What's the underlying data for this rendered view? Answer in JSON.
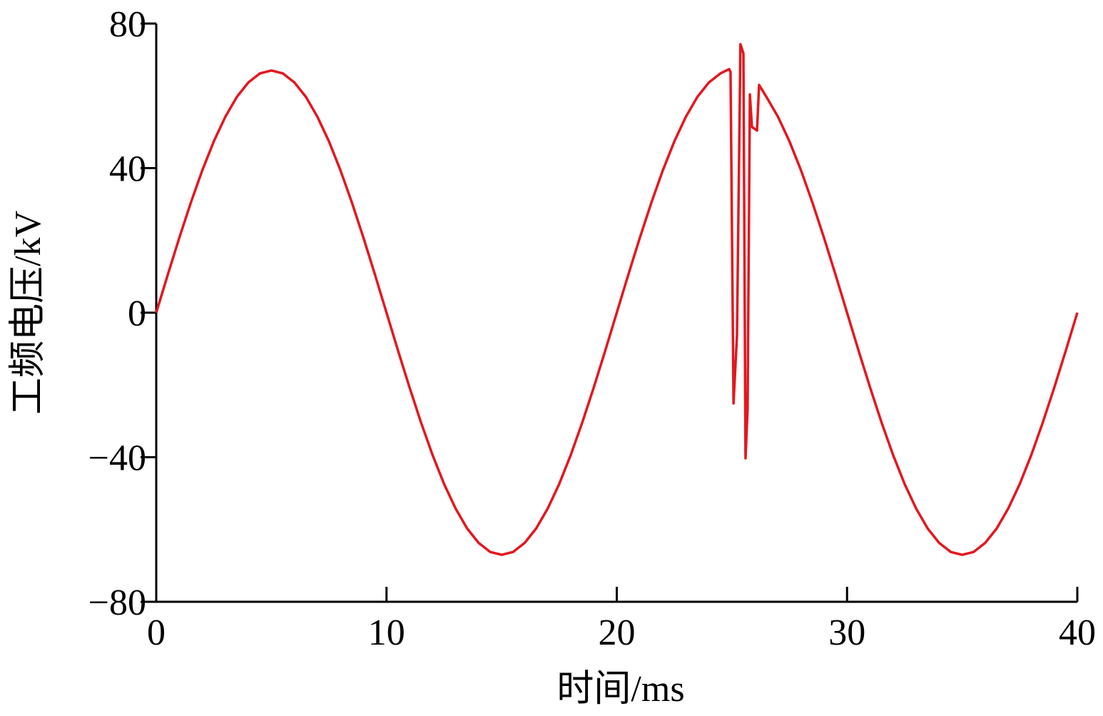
{
  "chart_data": {
    "type": "line",
    "xlabel": "时间/ms",
    "ylabel": "工频电压/kV",
    "color": "#e3171e",
    "x": [
      0,
      0.5,
      1,
      1.5,
      2,
      2.5,
      3,
      3.5,
      4,
      4.5,
      5,
      5.5,
      6,
      6.5,
      7,
      7.5,
      8,
      8.5,
      9,
      9.5,
      10,
      10.5,
      11,
      11.5,
      12,
      12.5,
      13,
      13.5,
      14,
      14.5,
      15,
      15.5,
      16,
      16.5,
      17,
      17.5,
      18,
      18.5,
      19,
      19.5,
      20,
      20.5,
      21,
      21.5,
      22,
      22.5,
      23,
      23.5,
      24,
      24.5,
      24.88,
      24.94,
      25.07,
      25.22,
      25.37,
      25.5,
      25.59,
      25.68,
      25.78,
      25.87,
      26.09,
      26.18,
      26.5,
      27,
      27.5,
      28,
      28.5,
      29,
      29.5,
      30,
      30.5,
      31,
      31.5,
      32,
      32.5,
      33,
      33.5,
      34,
      34.5,
      35,
      35.5,
      36,
      36.5,
      37,
      37.5,
      38,
      38.5,
      39,
      39.5,
      40
    ],
    "values": [
      0,
      10.5,
      20.7,
      30.4,
      39.4,
      47.4,
      54.2,
      59.7,
      63.7,
      66.2,
      67,
      66.2,
      63.7,
      59.7,
      54.2,
      47.4,
      39.4,
      30.4,
      20.7,
      10.5,
      0,
      -10.5,
      -20.7,
      -30.4,
      -39.4,
      -47.4,
      -54.2,
      -59.7,
      -63.7,
      -66.2,
      -67,
      -66.2,
      -63.7,
      -59.7,
      -54.2,
      -47.4,
      -39.4,
      -30.4,
      -20.7,
      -10.5,
      0,
      10.5,
      20.7,
      30.4,
      39.4,
      47.4,
      54.2,
      59.7,
      63.7,
      66.2,
      67.4,
      66.6,
      -25.1,
      -6.3,
      74.3,
      71.7,
      -40.3,
      -27,
      60.4,
      51.4,
      50.4,
      63,
      59.7,
      54.2,
      47.4,
      39.4,
      30.4,
      20.7,
      10.5,
      0,
      -10.5,
      -20.7,
      -30.4,
      -39.4,
      -47.4,
      -54.2,
      -59.7,
      -63.7,
      -66.2,
      -67,
      -66.2,
      -63.7,
      -59.7,
      -54.2,
      -47.4,
      -39.4,
      -30.4,
      -20.7,
      -10.5,
      0
    ],
    "xlim": [
      0,
      40
    ],
    "xticks": [
      0,
      10,
      20,
      30,
      40
    ],
    "ylim": [
      -80,
      80
    ],
    "yticks": [
      {
        "value": -80,
        "label": "−80"
      },
      {
        "value": -40,
        "label": "−40"
      },
      0,
      40,
      80
    ]
  }
}
